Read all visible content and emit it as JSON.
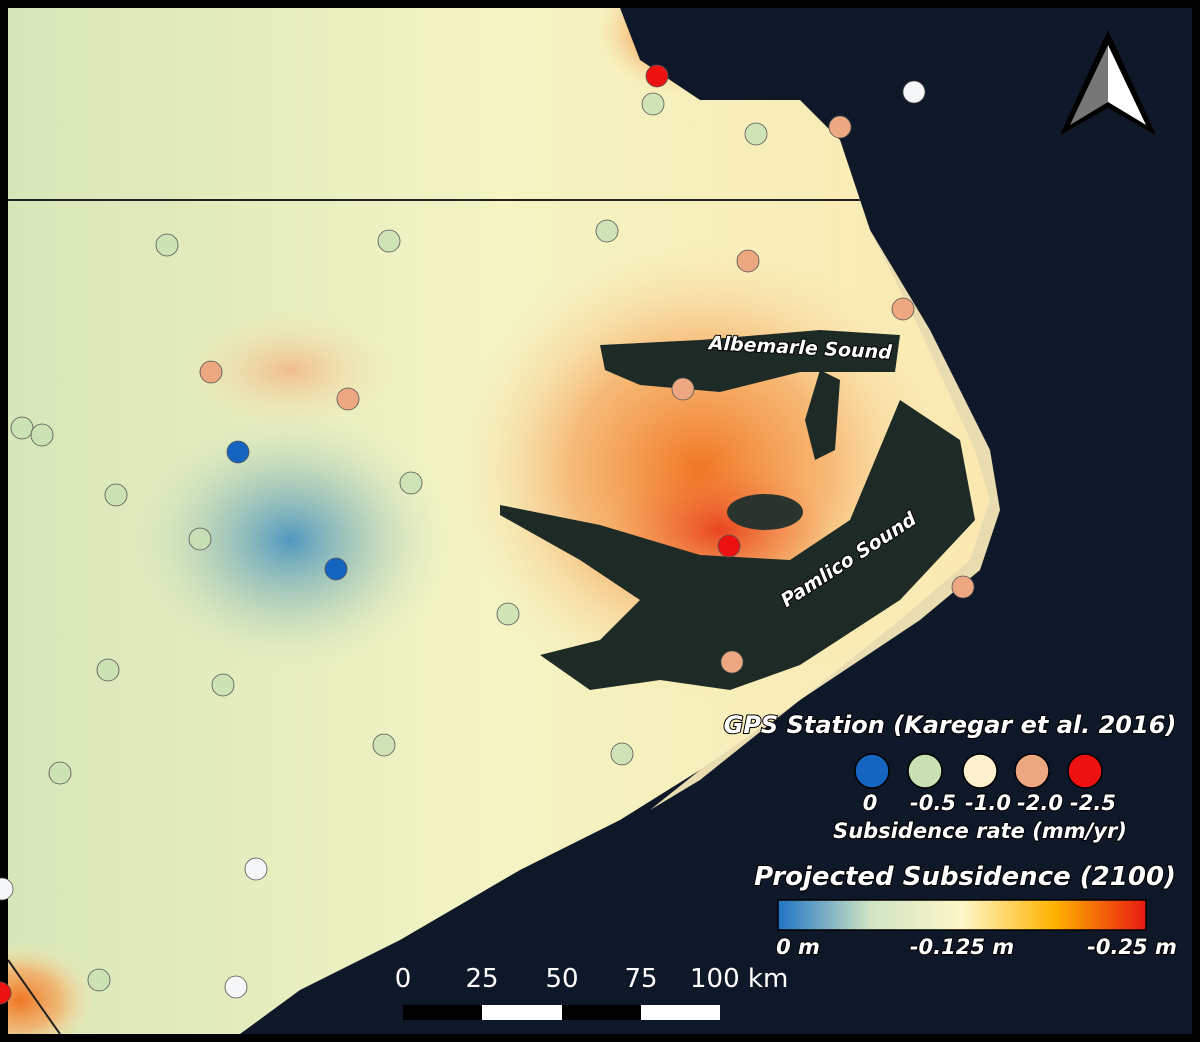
{
  "map": {
    "labels": {
      "albemarle": "Albemarle Sound",
      "pamlico": "Pamlico Sound"
    },
    "gps_legend": {
      "title": "GPS Station (Karegar et al. 2016)",
      "items": [
        {
          "label": "0",
          "color": "#1565c0"
        },
        {
          "label": "-0.5",
          "color": "#c9e0b4"
        },
        {
          "label": "-1.0",
          "color": "#fdf0cc"
        },
        {
          "label": "-2.0",
          "color": "#eda882"
        },
        {
          "label": "-2.5",
          "color": "#ee1111"
        }
      ],
      "axis_label": "Subsidence rate (mm/yr)"
    },
    "projection_legend": {
      "title": "Projected Subsidence (2100)",
      "ticks": [
        "0 m",
        "-0.125 m",
        "-0.25 m"
      ],
      "colors": [
        "#1f74c4",
        "#cfe4c4",
        "#fdf6c8",
        "#ffb400",
        "#e81a12"
      ]
    },
    "scale_bar": {
      "ticks": [
        "0",
        "25",
        "50",
        "75",
        "100 km"
      ]
    }
  }
}
